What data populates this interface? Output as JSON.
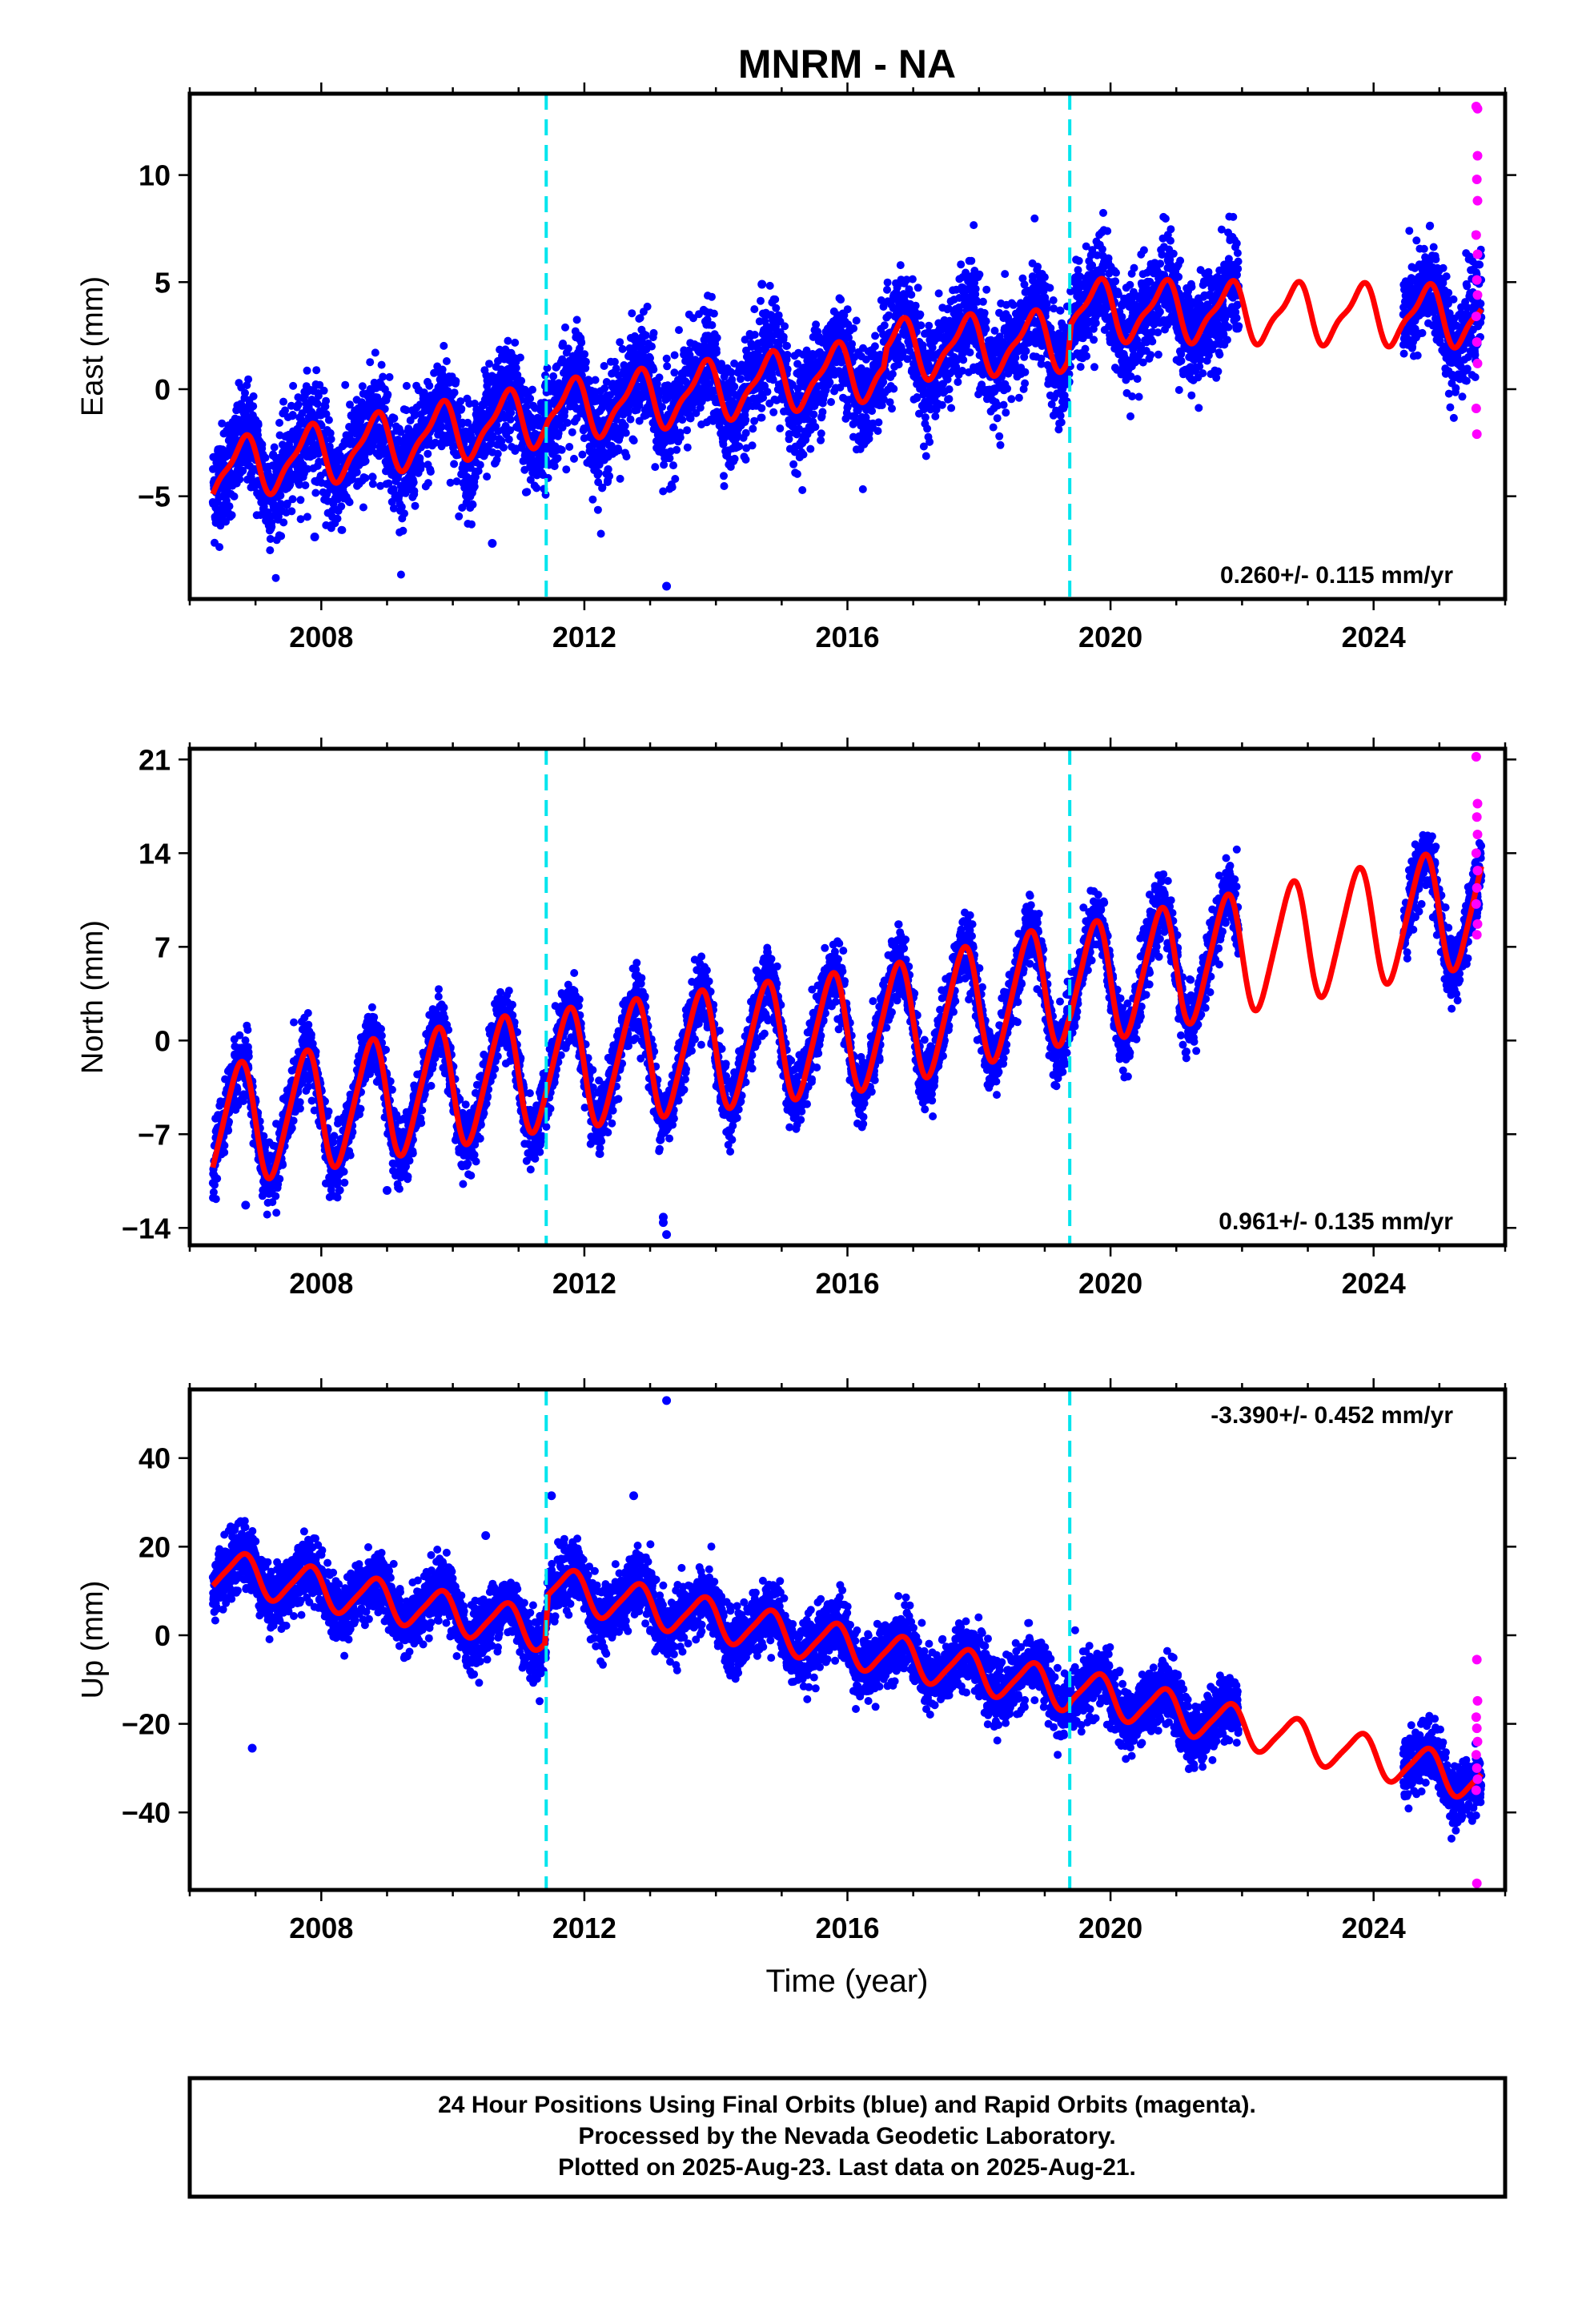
{
  "figure": {
    "title": "MNRM - NA",
    "xlabel": "Time (year)",
    "footer": [
      "24 Hour Positions Using Final Orbits (blue) and Rapid Orbits (magenta).",
      "Processed by the Nevada Geodetic Laboratory.",
      "Plotted on 2025-Aug-23. Last data on 2025-Aug-21."
    ]
  },
  "colors": {
    "final_orbits": "#0000ff",
    "rapid_orbits": "#ff00ff",
    "model": "#ff0000",
    "equipment_change": "#00e5ee",
    "frame": "#000000"
  },
  "chart_data": [
    {
      "type": "scatter",
      "component": "east",
      "ylabel": "East (mm)",
      "rate_label": "0.260+/- 0.115 mm/yr",
      "xlim": [
        2006.0,
        2026.0
      ],
      "ylim": [
        -9.8,
        13.8
      ],
      "x_ticks": [
        2008,
        2012,
        2016,
        2020,
        2024
      ],
      "y_ticks": [
        -5,
        0,
        5,
        10
      ],
      "y_tick_labels": [
        "−5",
        "0",
        "5",
        "10"
      ],
      "data_start": 2006.35,
      "final_end": 2021.95,
      "gap": [
        2021.95,
        2024.45
      ],
      "final_resume": 2024.45,
      "last_data": 2025.64,
      "rapid_start": 2025.57,
      "model": {
        "trend_points": [
          [
            2006.35,
            -3.9
          ],
          [
            2011.4,
            -1.2
          ],
          [
            2011.45,
            -1.1
          ],
          [
            2016.55,
            1.0
          ],
          [
            2016.6,
            1.8
          ],
          [
            2019.35,
            2.3
          ],
          [
            2019.4,
            3.7
          ],
          [
            2025.64,
            3.4
          ]
        ],
        "annual_amplitude": 1.3,
        "annual_phase_year": 0.55,
        "semiannual_amplitude": 0.4,
        "semiannual_phase_year": 0.3
      },
      "scatter_noise_mm": 1.2,
      "outliers": [
        [
          2013.25,
          -9.2
        ],
        [
          2010.6,
          -7.2
        ],
        [
          2007.9,
          -6.9
        ],
        [
          2014.7,
          4.9
        ]
      ],
      "rapid_points": [
        [
          2025.56,
          13.2
        ],
        [
          2025.58,
          10.9
        ],
        [
          2025.57,
          9.8
        ],
        [
          2025.58,
          8.8
        ],
        [
          2025.56,
          7.2
        ],
        [
          2025.58,
          6.3
        ],
        [
          2025.57,
          5.1
        ],
        [
          2025.58,
          4.4
        ],
        [
          2025.56,
          3.4
        ],
        [
          2025.57,
          2.2
        ],
        [
          2025.58,
          1.2
        ],
        [
          2025.56,
          -0.9
        ],
        [
          2025.57,
          -2.1
        ],
        [
          2025.58,
          13.1
        ]
      ],
      "equipment_changes": [
        2011.42,
        2019.38
      ]
    },
    {
      "type": "scatter",
      "component": "north",
      "ylabel": "North (mm)",
      "rate_label": "0.961+/- 0.135 mm/yr",
      "xlim": [
        2006.0,
        2026.0
      ],
      "ylim": [
        -15.3,
        21.8
      ],
      "x_ticks": [
        2008,
        2012,
        2016,
        2020,
        2024
      ],
      "y_ticks": [
        -14,
        -7,
        0,
        7,
        14,
        21
      ],
      "y_tick_labels": [
        "−14",
        "−7",
        "0",
        "7",
        "14",
        "21"
      ],
      "data_start": 2006.35,
      "final_end": 2021.95,
      "gap": [
        2021.95,
        2024.45
      ],
      "final_resume": 2024.45,
      "last_data": 2025.64,
      "rapid_start": 2025.57,
      "model": {
        "trend_points": [
          [
            2006.35,
            -6.5
          ],
          [
            2011.4,
            -2.2
          ],
          [
            2011.45,
            -2.3
          ],
          [
            2016.55,
            1.0
          ],
          [
            2019.35,
            4.3
          ],
          [
            2019.4,
            4.0
          ],
          [
            2025.64,
            10.2
          ]
        ],
        "annual_amplitude": 4.4,
        "annual_phase_year": 0.5,
        "semiannual_amplitude": 0.6,
        "semiannual_phase_year": 0.25
      },
      "scatter_noise_mm": 1.2,
      "outliers": [
        [
          2013.2,
          -13.2
        ],
        [
          2013.25,
          -14.5
        ],
        [
          2013.2,
          -13.6
        ],
        [
          2006.85,
          -12.3
        ],
        [
          2009.0,
          -11.2
        ]
      ],
      "rapid_points": [
        [
          2025.56,
          21.2
        ],
        [
          2025.58,
          17.7
        ],
        [
          2025.57,
          16.7
        ],
        [
          2025.58,
          15.4
        ],
        [
          2025.56,
          14.0
        ],
        [
          2025.58,
          12.7
        ],
        [
          2025.57,
          11.4
        ],
        [
          2025.56,
          10.2
        ],
        [
          2025.58,
          8.7
        ],
        [
          2025.57,
          7.9
        ]
      ],
      "equipment_changes": [
        2011.42,
        2019.38
      ]
    },
    {
      "type": "scatter",
      "component": "up",
      "ylabel": "Up (mm)",
      "rate_label": "-3.390+/- 0.452 mm/yr",
      "xlim": [
        2006.0,
        2026.0
      ],
      "ylim": [
        -57.5,
        55.5
      ],
      "x_ticks": [
        2008,
        2012,
        2016,
        2020,
        2024
      ],
      "y_ticks": [
        -40,
        -20,
        0,
        20,
        40
      ],
      "y_tick_labels": [
        "−40",
        "−20",
        "0",
        "20",
        "40"
      ],
      "data_start": 2006.35,
      "final_end": 2021.95,
      "gap": [
        2021.95,
        2024.45
      ],
      "final_resume": 2024.45,
      "last_data": 2025.64,
      "rapid_start": 2025.57,
      "model": {
        "trend_points": [
          [
            2006.35,
            15.0
          ],
          [
            2011.4,
            1.0
          ],
          [
            2011.45,
            11.0
          ],
          [
            2019.35,
            -12.5
          ],
          [
            2019.4,
            -12.0
          ],
          [
            2025.64,
            -33.0
          ]
        ],
        "annual_amplitude": 4.5,
        "annual_phase_year": 0.55,
        "semiannual_amplitude": 0.8,
        "semiannual_phase_year": 0.3
      },
      "scatter_noise_mm": 3.5,
      "outliers": [
        [
          2013.25,
          53.0
        ],
        [
          2006.95,
          -25.5
        ],
        [
          2011.5,
          31.5
        ],
        [
          2012.75,
          31.5
        ],
        [
          2010.5,
          22.5
        ]
      ],
      "rapid_points": [
        [
          2025.57,
          -5.5
        ],
        [
          2025.58,
          -14.8
        ],
        [
          2025.56,
          -18.5
        ],
        [
          2025.57,
          -21.0
        ],
        [
          2025.58,
          -24.0
        ],
        [
          2025.56,
          -27.0
        ],
        [
          2025.57,
          -30.0
        ],
        [
          2025.58,
          -32.5
        ],
        [
          2025.56,
          -35.0
        ],
        [
          2025.57,
          -56.0
        ]
      ],
      "equipment_changes": [
        2011.42,
        2019.38
      ]
    }
  ]
}
